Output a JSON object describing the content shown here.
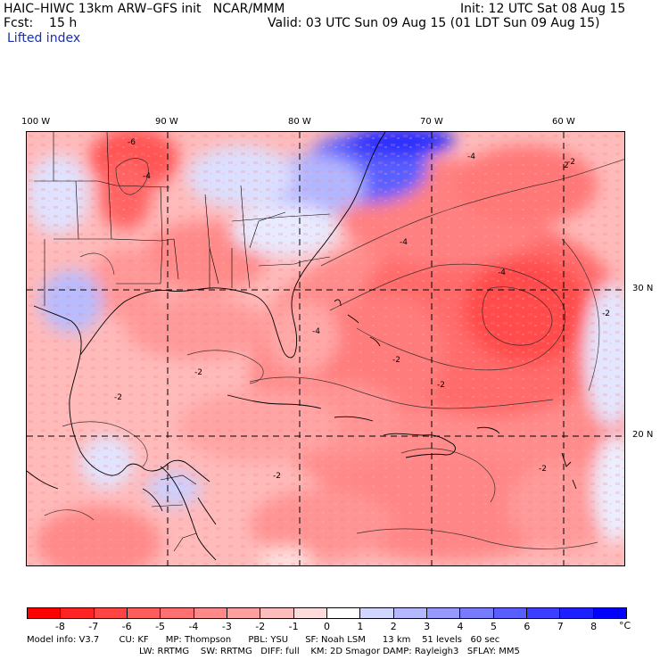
{
  "header": {
    "title": "HAIC–HIWC 13km ARW–GFS init   NCAR/MMM",
    "init": "Init: 12 UTC Sat 08 Aug 15",
    "fcst": "Fcst:    15 h",
    "valid": "Valid: 03 UTC Sun 09 Aug 15 (01 LDT Sun 09 Aug 15)",
    "field": "Lifted index"
  },
  "map": {
    "lon_labels": [
      "100 W",
      "90 W",
      "80 W",
      "70 W",
      "60 W"
    ],
    "lat_labels": [
      "30 N",
      "20 N"
    ],
    "contour_labels": [
      "-6",
      "-4",
      "-2",
      "-4",
      "-2",
      "-4",
      "-2",
      "-4",
      "-2",
      "-2",
      "-4",
      "-2",
      "2",
      "-2",
      "-2"
    ]
  },
  "colorbar": {
    "unit": "°C",
    "ticks": [
      "-8",
      "-7",
      "-6",
      "-5",
      "-4",
      "-3",
      "-2",
      "-1",
      "0",
      "1",
      "2",
      "3",
      "4",
      "5",
      "6",
      "7",
      "8"
    ],
    "colors": [
      "#ff0000",
      "#ff2424",
      "#ff4444",
      "#ff5c5c",
      "#ff7070",
      "#ff8888",
      "#ffa0a0",
      "#ffbcbc",
      "#ffdcdc",
      "#ffffff",
      "#d2d6ff",
      "#b4b8ff",
      "#9699ff",
      "#787bff",
      "#5a5dff",
      "#3c3fff",
      "#1e21ff",
      "#0000ff"
    ]
  },
  "footer": {
    "line1": "Model info: V3.7       CU: KF      MP: Thompson      PBL: YSU      SF: Noah LSM      13 km    51 levels   60 sec",
    "line2": "LW: RRTMG    SW: RRTMG   DIFF: full    KM: 2D Smagor DAMP: Rayleigh3   SFLAY: MM5"
  }
}
